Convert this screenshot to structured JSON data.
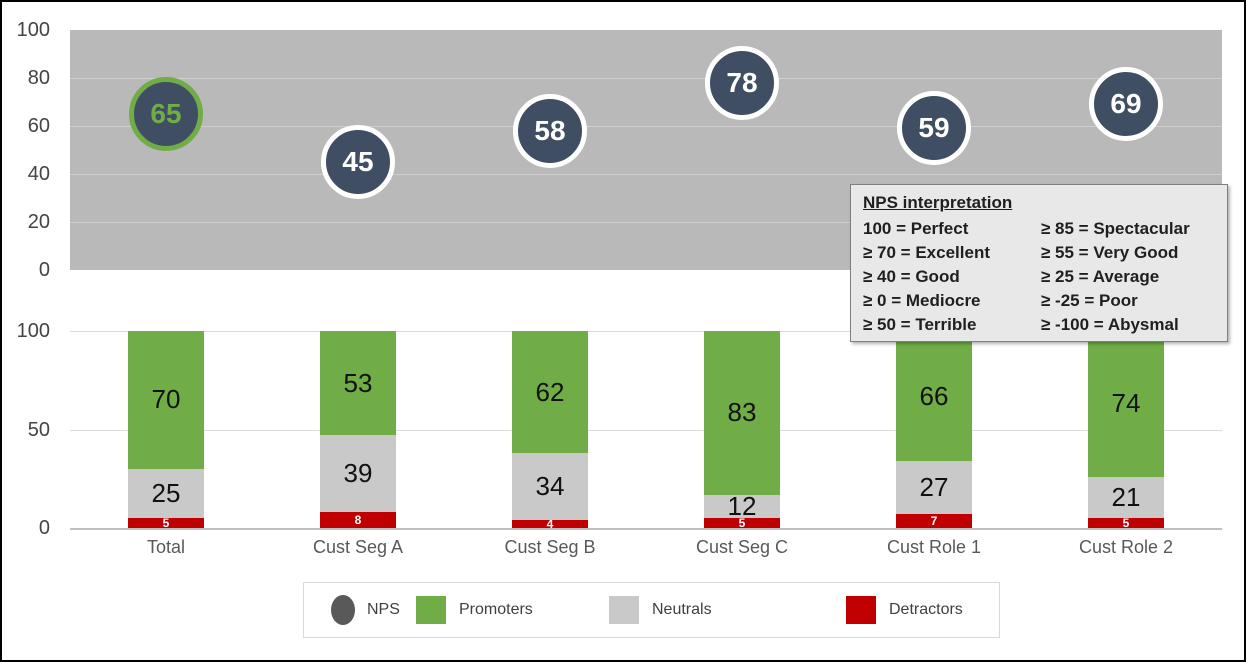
{
  "colors": {
    "bubble_fill": "#3F4E63",
    "bubble_ring": "#FFFFFF",
    "bubble_text": "#FFFFFF",
    "highlight": "#70AD47",
    "promoters": "#70AD47",
    "neutrals": "#C9C9C9",
    "detractors": "#C00000",
    "top_plot_bg": "#B9B9B9",
    "top_gridline": "#CFCFCF",
    "bottom_gridline": "#D9D9D9",
    "axis_line": "#BFBFBF",
    "axis_text": "#444444",
    "category_text": "#595959",
    "bar_label": "#111111",
    "detractor_label": "#FFFFFF",
    "legend_nps": "#595959"
  },
  "chart_data": [
    {
      "type": "scatter",
      "categories": [
        "Total",
        "Cust Seg A",
        "Cust Seg B",
        "Cust Seg C",
        "Cust Role 1",
        "Cust Role 2"
      ],
      "series": [
        {
          "name": "NPS",
          "values": [
            65,
            45,
            58,
            78,
            59,
            69
          ],
          "highlight_index": 0
        }
      ],
      "ylim": [
        0,
        100
      ],
      "yticks": [
        0,
        20,
        40,
        60,
        80,
        100
      ],
      "grid": true,
      "legend_position": "bottom"
    },
    {
      "type": "bar",
      "stacked": true,
      "categories": [
        "Total",
        "Cust Seg A",
        "Cust Seg B",
        "Cust Seg C",
        "Cust Role 1",
        "Cust Role 2"
      ],
      "series": [
        {
          "name": "Detractors",
          "values": [
            5,
            8,
            4,
            5,
            7,
            5
          ]
        },
        {
          "name": "Neutrals",
          "values": [
            25,
            39,
            34,
            12,
            27,
            21
          ]
        },
        {
          "name": "Promoters",
          "values": [
            70,
            53,
            62,
            83,
            66,
            74
          ]
        }
      ],
      "ylim": [
        0,
        100
      ],
      "yticks": [
        0,
        50,
        100
      ],
      "grid": true,
      "legend_position": "bottom"
    }
  ],
  "interpretation_box": {
    "title": "NPS interpretation",
    "left_column": [
      "100 = Perfect",
      "≥ 70 = Excellent",
      "≥ 40 = Good",
      "≥ 0 = Mediocre",
      "≥ 50 = Terrible"
    ],
    "right_column": [
      "≥ 85 = Spectacular",
      "≥ 55 = Very Good",
      "≥ 25 = Average",
      "≥ -25 = Poor",
      "≥ -100 = Abysmal"
    ]
  },
  "legend": {
    "items": [
      {
        "label": "NPS",
        "shape": "circle",
        "color": "#595959"
      },
      {
        "label": "Promoters",
        "shape": "square",
        "color": "#70AD47"
      },
      {
        "label": "Neutrals",
        "shape": "square",
        "color": "#C9C9C9"
      },
      {
        "label": "Detractors",
        "shape": "square",
        "color": "#C00000"
      }
    ]
  }
}
